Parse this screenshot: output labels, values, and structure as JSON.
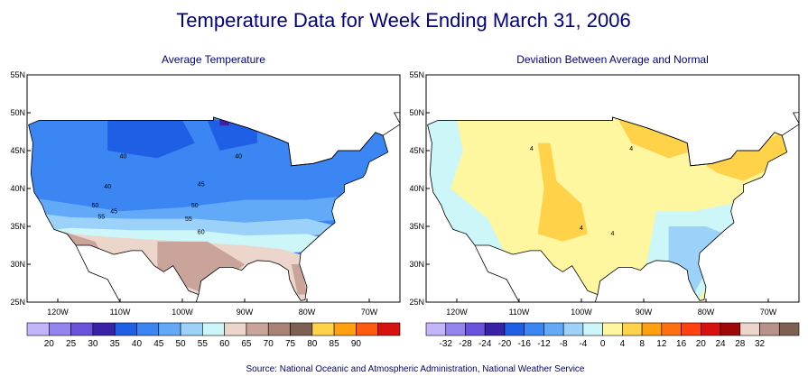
{
  "title": "Temperature Data for Week Ending March 31, 2006",
  "maps": [
    {
      "title": "Average Temperature",
      "lat_labels": [
        "55N",
        "50N",
        "45N",
        "40N",
        "35N",
        "30N",
        "25N"
      ],
      "lon_labels": [
        "120W",
        "110W",
        "100W",
        "90W",
        "80W",
        "70W"
      ],
      "contour_labels": [
        40,
        40,
        40,
        45,
        50,
        50,
        55,
        45,
        55,
        60
      ],
      "legend": {
        "colors": [
          "#c4b4fa",
          "#9484f0",
          "#6a52dc",
          "#3a22a8",
          "#1f5fe6",
          "#3b86f2",
          "#62aaf8",
          "#9cd2fa",
          "#ccf6f8",
          "#ecd6cc",
          "#caa49a",
          "#a88274",
          "#7e6052",
          "#ffd24a",
          "#ffa010",
          "#ff5a10",
          "#d81010"
        ],
        "ticks": [
          20,
          25,
          30,
          35,
          40,
          45,
          50,
          55,
          60,
          65,
          70,
          75,
          80,
          85,
          90
        ]
      }
    },
    {
      "title": "Deviation Between Average and Normal",
      "lat_labels": [
        "55N",
        "50N",
        "45N",
        "40N",
        "35N",
        "30N",
        "25N"
      ],
      "lon_labels": [
        "120W",
        "110W",
        "100W",
        "90W",
        "80W",
        "70W"
      ],
      "contour_labels": [
        4,
        4,
        4,
        4
      ],
      "legend": {
        "colors": [
          "#c4b4fa",
          "#9484f0",
          "#6a52dc",
          "#3a22a8",
          "#1f5fe6",
          "#3b86f2",
          "#62aaf8",
          "#9cd2fa",
          "#ccf6f8",
          "#fff6a0",
          "#ffd24a",
          "#ffa010",
          "#ff7010",
          "#ff4010",
          "#d81010",
          "#a00808",
          "#ecd6cc",
          "#b8928a",
          "#7e6052"
        ],
        "ticks": [
          -32,
          -28,
          -24,
          -20,
          -16,
          -12,
          -8,
          -4,
          0,
          4,
          8,
          12,
          16,
          20,
          24,
          28,
          32
        ]
      }
    }
  ],
  "source": "Source:  National Oceanic and Atmospheric Administration, National Weather Service"
}
